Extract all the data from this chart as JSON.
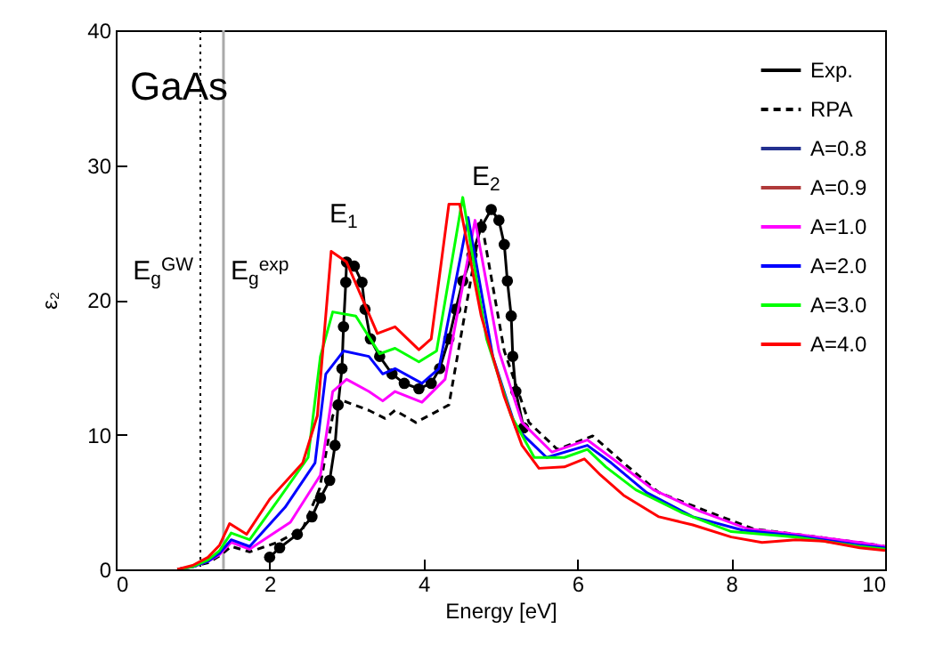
{
  "chart_data": {
    "type": "line",
    "title": "GaAs",
    "xlabel": "Energy [eV]",
    "ylabel": "ε₂",
    "xlim": [
      0,
      10
    ],
    "ylim": [
      0,
      40
    ],
    "xticks": [
      0,
      2,
      4,
      6,
      8,
      10
    ],
    "yticks": [
      0,
      10,
      20,
      30,
      40
    ],
    "grid": false,
    "legend": "top right",
    "series": [
      {
        "name": "Exp.",
        "color": "#000000",
        "marker": "circle",
        "x": [
          2.0,
          2.13,
          2.36,
          2.55,
          2.66,
          2.78,
          2.85,
          2.89,
          2.94,
          2.96,
          2.99,
          3.0,
          3.1,
          3.2,
          3.24,
          3.31,
          3.43,
          3.59,
          3.75,
          3.94,
          4.1,
          4.21,
          4.33,
          4.42,
          4.51,
          4.63,
          4.75,
          4.88,
          4.98,
          5.05,
          5.09,
          5.14,
          5.16,
          5.2,
          5.3
        ],
        "values": [
          0.9,
          1.6,
          2.6,
          3.9,
          5.3,
          6.6,
          9.2,
          12.2,
          14.9,
          18.0,
          21.3,
          22.8,
          22.5,
          21.3,
          19.3,
          17.1,
          15.8,
          14.5,
          13.8,
          13.4,
          13.8,
          14.9,
          17.1,
          19.3,
          21.4,
          23.3,
          25.4,
          26.7,
          25.9,
          24.1,
          21.4,
          18.8,
          15.8,
          13.2,
          10.5
        ]
      },
      {
        "name": "RPA",
        "color": "#000000",
        "line_style": "dashed",
        "x": [
          0.8,
          1.0,
          1.2,
          1.35,
          1.5,
          1.74,
          2.1,
          2.43,
          2.65,
          2.82,
          2.96,
          3.29,
          3.5,
          3.63,
          3.9,
          4.33,
          4.75,
          5.05,
          5.37,
          5.74,
          6.2,
          6.6,
          7.06,
          7.69,
          8.29,
          8.84,
          9.67,
          10
        ],
        "values": [
          0,
          0.2,
          0.5,
          1.0,
          1.7,
          1.3,
          2.0,
          3.0,
          6.0,
          11.4,
          12.5,
          11.8,
          11.2,
          11.8,
          10.9,
          12.2,
          25.9,
          16.2,
          10.9,
          8.9,
          9.9,
          7.9,
          5.7,
          4.3,
          3.0,
          2.6,
          2.0,
          1.7
        ]
      },
      {
        "name": "A=0.8",
        "color": "#23308f"
      },
      {
        "name": "A=0.9",
        "color": "#b03a3a"
      },
      {
        "name": "A=1.0",
        "color": "#ff00ff",
        "x": [
          0.8,
          1.0,
          1.2,
          1.35,
          1.5,
          1.74,
          2.27,
          2.66,
          2.82,
          3.0,
          3.29,
          3.47,
          3.63,
          3.98,
          4.28,
          4.67,
          4.98,
          5.28,
          5.67,
          6.13,
          6.53,
          6.99,
          7.6,
          8.22,
          8.84,
          9.67,
          10
        ],
        "values": [
          0,
          0.2,
          0.6,
          1.1,
          2.0,
          1.5,
          3.5,
          7.0,
          13.2,
          14.1,
          13.2,
          12.5,
          13.2,
          12.4,
          14.1,
          25.9,
          16.2,
          10.9,
          8.7,
          9.6,
          7.9,
          5.9,
          4.3,
          3.0,
          2.6,
          2.0,
          1.7
        ]
      },
      {
        "name": "A=2.0",
        "color": "#0000ff",
        "x": [
          0.8,
          1.0,
          1.2,
          1.35,
          1.5,
          1.74,
          2.2,
          2.59,
          2.73,
          2.96,
          3.29,
          3.47,
          3.63,
          3.98,
          4.2,
          4.58,
          4.9,
          5.2,
          5.6,
          6.13,
          6.44,
          6.9,
          7.5,
          8.15,
          8.84,
          9.67,
          10
        ],
        "values": [
          0,
          0.2,
          0.6,
          1.2,
          2.2,
          1.7,
          4.6,
          7.9,
          14.5,
          16.2,
          15.8,
          14.5,
          14.9,
          13.8,
          14.9,
          26.1,
          15.8,
          10.5,
          8.3,
          9.2,
          7.9,
          5.7,
          3.9,
          2.9,
          2.5,
          1.8,
          1.6
        ]
      },
      {
        "name": "A=3.0",
        "color": "#00ff00",
        "x": [
          0.8,
          1.0,
          1.2,
          1.35,
          1.5,
          1.74,
          2.13,
          2.5,
          2.66,
          2.82,
          3.12,
          3.43,
          3.63,
          3.94,
          4.17,
          4.51,
          4.82,
          5.14,
          5.44,
          5.83,
          6.13,
          6.37,
          6.76,
          7.36,
          8.0,
          8.84,
          9.67,
          10
        ],
        "values": [
          0,
          0.2,
          0.7,
          1.4,
          2.7,
          2.2,
          5.3,
          8.3,
          15.8,
          19.1,
          18.8,
          16.0,
          16.4,
          15.4,
          16.2,
          27.6,
          17.1,
          11.4,
          8.3,
          8.3,
          8.9,
          7.6,
          5.9,
          4.2,
          2.8,
          2.4,
          1.7,
          1.5
        ]
      },
      {
        "name": "A=4.0",
        "color": "#ff0000",
        "x": [
          0.8,
          1.0,
          1.2,
          1.35,
          1.48,
          1.7,
          2.0,
          2.43,
          2.62,
          2.8,
          3.0,
          3.4,
          3.63,
          3.94,
          4.1,
          4.33,
          4.47,
          4.75,
          5.05,
          5.28,
          5.5,
          5.83,
          6.09,
          6.3,
          6.6,
          7.06,
          7.5,
          8.0,
          8.4,
          8.84,
          9.2,
          9.67,
          10
        ],
        "values": [
          0,
          0.3,
          0.9,
          1.8,
          3.4,
          2.6,
          5.2,
          7.9,
          11.4,
          23.6,
          22.8,
          17.5,
          18.0,
          16.3,
          17.1,
          27.1,
          27.1,
          18.8,
          12.8,
          9.2,
          7.5,
          7.6,
          8.2,
          7.0,
          5.5,
          3.9,
          3.3,
          2.4,
          2.0,
          2.2,
          2.1,
          1.6,
          1.4
        ]
      }
    ],
    "ref_lines": [
      {
        "axis": "x",
        "value": 1.1,
        "label": "E$_{g}$$^{GW}$",
        "color": "#000000",
        "line_style": "dotted"
      },
      {
        "axis": "x",
        "value": 1.4,
        "label": "E$_{g}$$^{exp}$",
        "color": "#aaaaaa",
        "line_style": "solid"
      }
    ],
    "annotations": [
      "E$_{1}$",
      "E$_{2}$"
    ]
  }
}
